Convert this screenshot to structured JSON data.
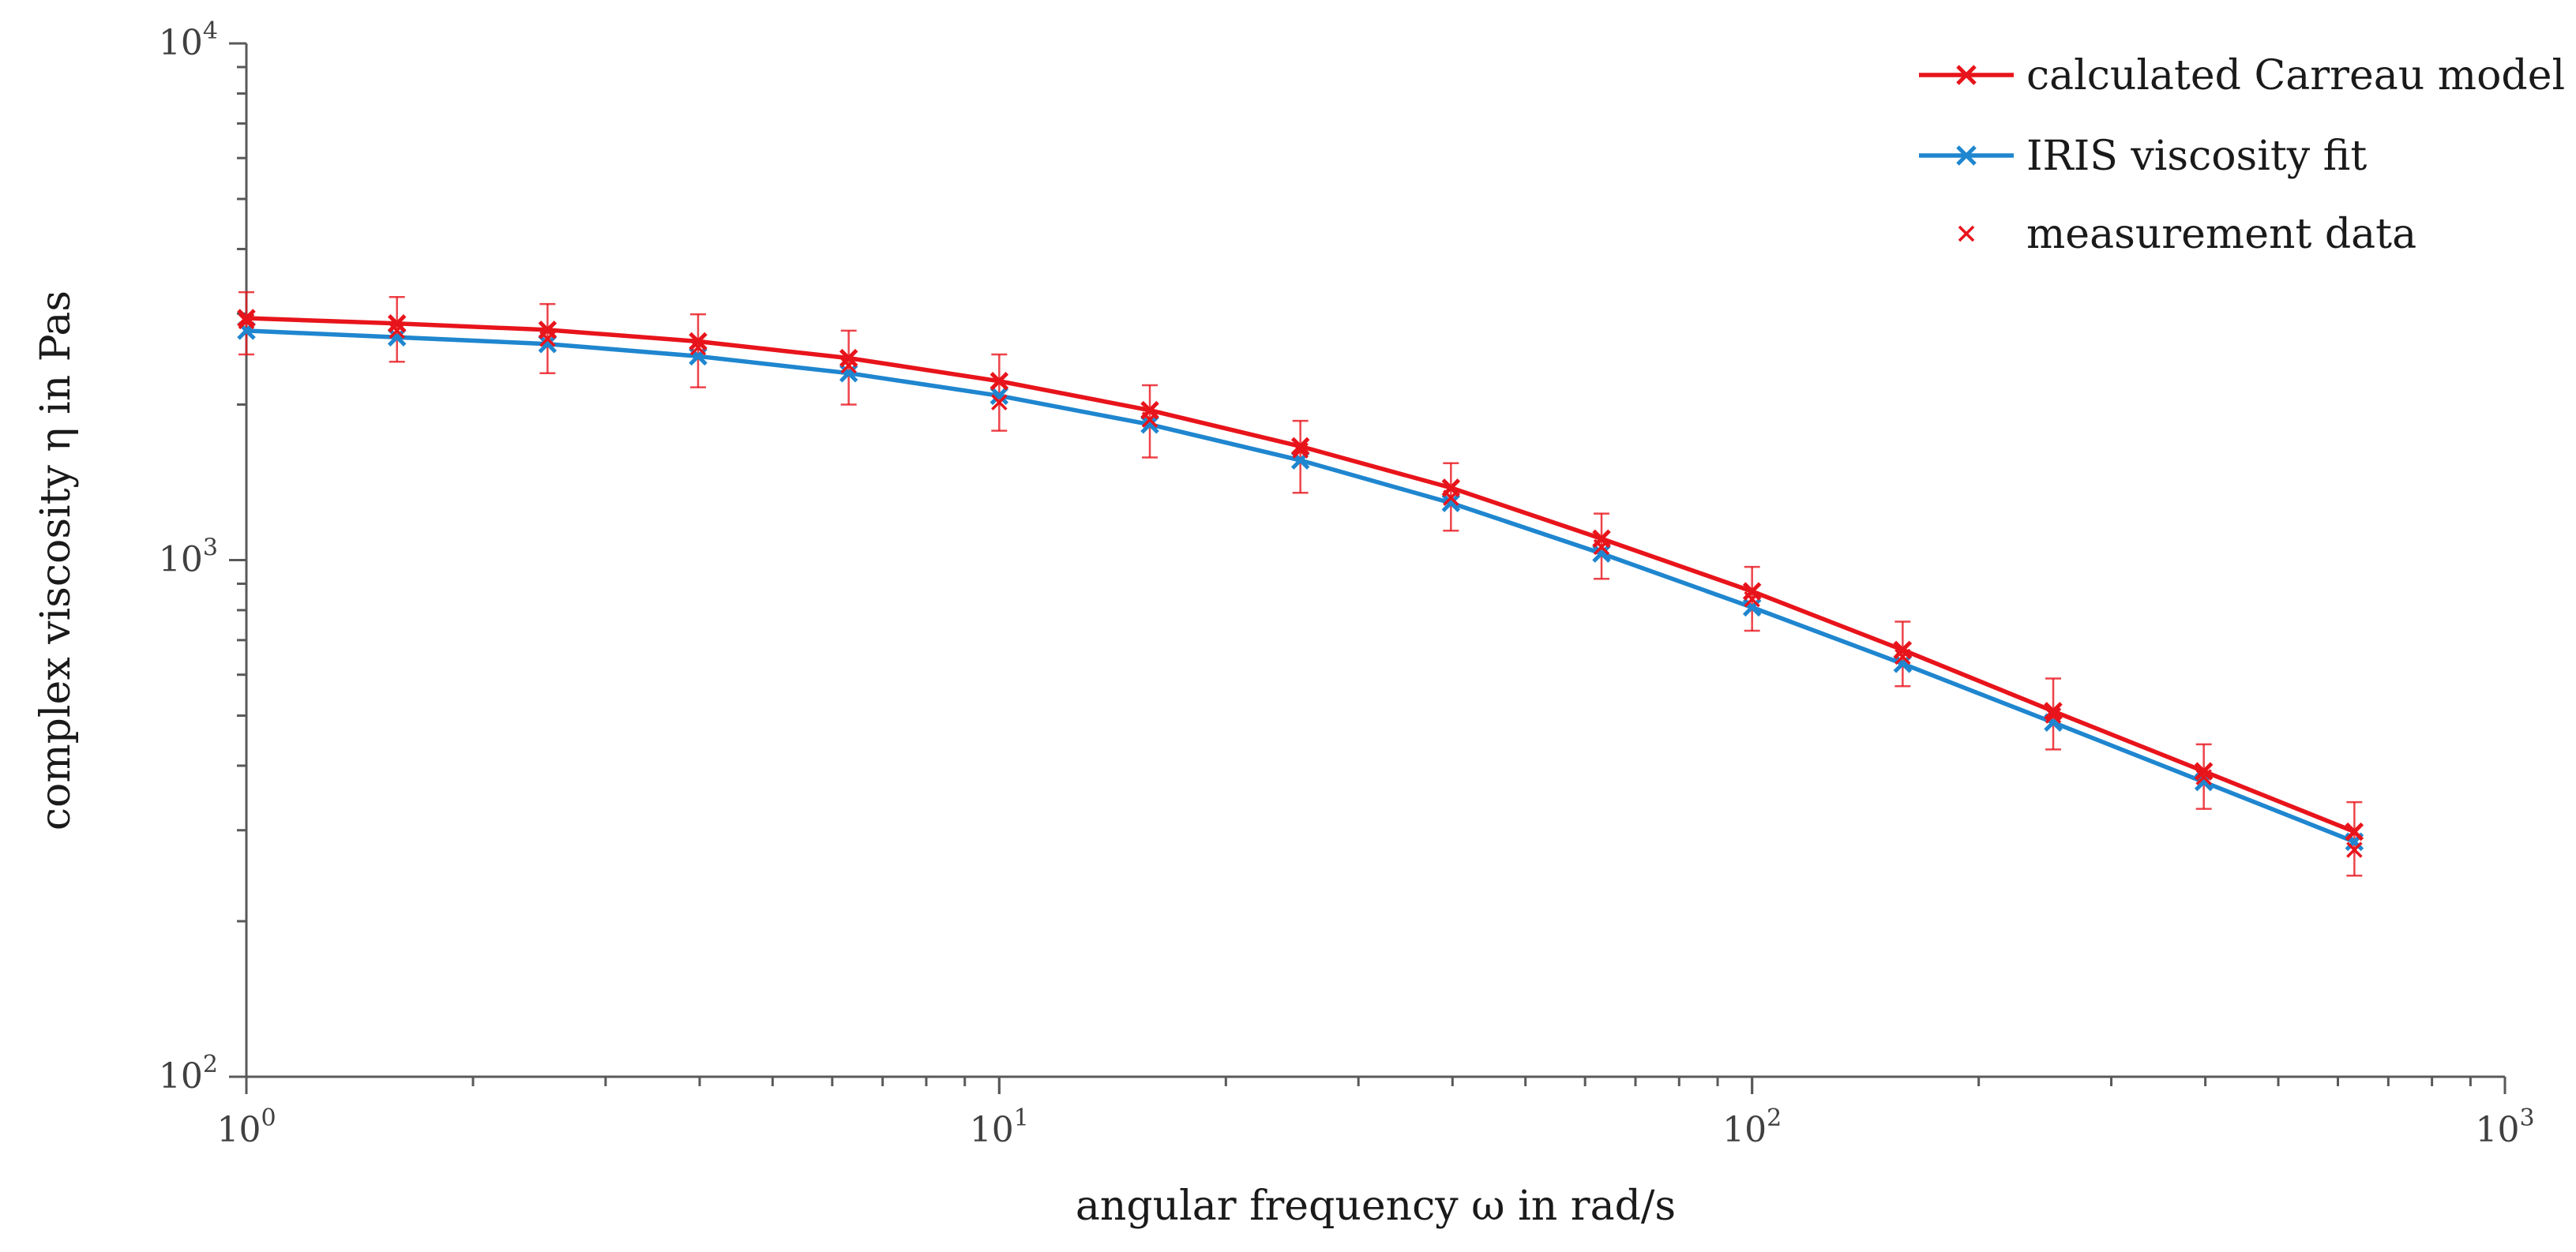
{
  "chart_data": {
    "type": "line",
    "x_scale": "log",
    "y_scale": "log",
    "xlim": [
      1,
      1000
    ],
    "ylim": [
      100,
      10000
    ],
    "xlabel": "angular frequency ω in rad/s",
    "ylabel": "complex viscosity η in Pas",
    "x_ticks": [
      {
        "base": "10",
        "exp": "0",
        "value": 1
      },
      {
        "base": "10",
        "exp": "1",
        "value": 10
      },
      {
        "base": "10",
        "exp": "2",
        "value": 100
      },
      {
        "base": "10",
        "exp": "3",
        "value": 1000
      }
    ],
    "y_ticks": [
      {
        "base": "10",
        "exp": "2",
        "value": 100
      },
      {
        "base": "10",
        "exp": "3",
        "value": 1000
      },
      {
        "base": "10",
        "exp": "4",
        "value": 10000
      }
    ],
    "legend_position": "top-right",
    "x": [
      1.0,
      1.585,
      2.512,
      3.981,
      6.31,
      10.0,
      15.85,
      25.12,
      39.81,
      63.1,
      100.0,
      158.5,
      251.2,
      398.1,
      631.0
    ],
    "series": [
      {
        "name": "calculated Carreau model",
        "color": "#e8141b",
        "style": "line-marker",
        "values": [
          2940,
          2870,
          2790,
          2650,
          2460,
          2220,
          1950,
          1660,
          1380,
          1100,
          870,
          670,
          510,
          390,
          298
        ]
      },
      {
        "name": "IRIS viscosity fit",
        "color": "#1f86cf",
        "style": "line-marker",
        "values": [
          2780,
          2700,
          2620,
          2480,
          2300,
          2080,
          1830,
          1560,
          1290,
          1030,
          810,
          630,
          485,
          372,
          285
        ]
      },
      {
        "name": "measurement data",
        "color": "#e8141b",
        "style": "marker-errorbar",
        "values": [
          2900,
          2780,
          2680,
          2580,
          2380,
          2020,
          1870,
          1630,
          1320,
          1060,
          840,
          650,
          500,
          380,
          275
        ],
        "error_low": [
          2500,
          2420,
          2300,
          2160,
          2000,
          1780,
          1580,
          1350,
          1140,
          920,
          730,
          570,
          430,
          330,
          245
        ],
        "error_high": [
          3300,
          3230,
          3130,
          2990,
          2780,
          2500,
          2180,
          1860,
          1540,
          1230,
          970,
          760,
          590,
          440,
          340
        ]
      }
    ]
  }
}
